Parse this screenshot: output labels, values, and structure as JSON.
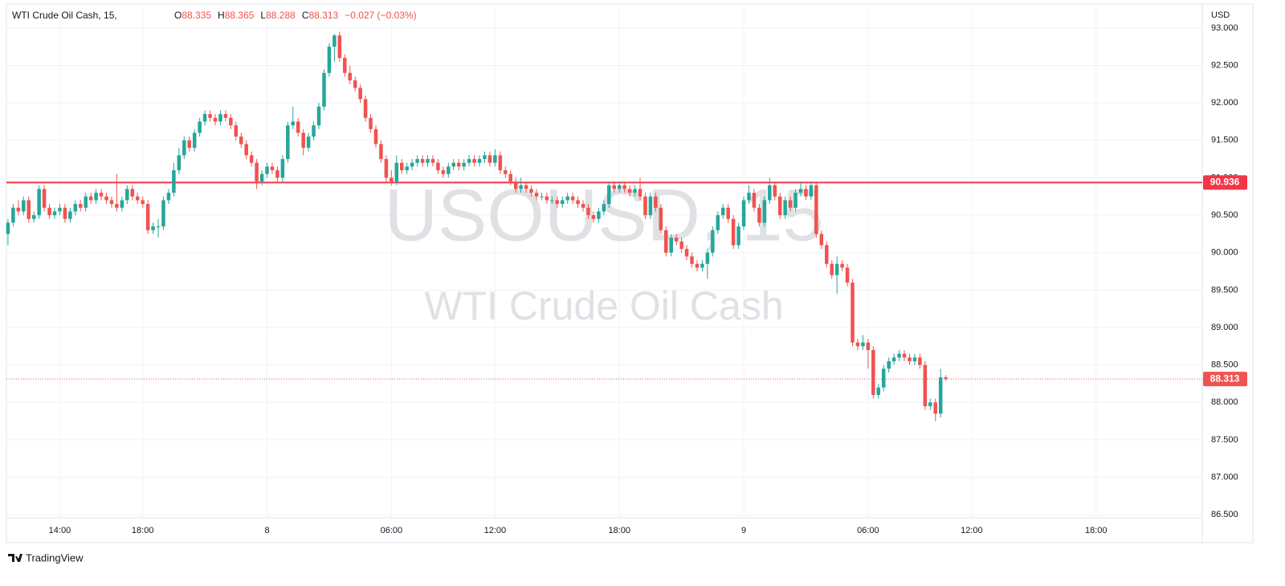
{
  "chart_data": {
    "type": "candlestick",
    "title": "WTI Crude Oil Cash, 15,",
    "ohlc_letters": [
      "O",
      "H",
      "L",
      "C"
    ],
    "change": "−0.027 (−0.03%)",
    "currency": "USD",
    "watermark": {
      "symbol": "USOUSD, 15",
      "name": "WTI Crude Oil Cash"
    },
    "brand": "TradingView",
    "up_color": "#26a69a",
    "down_color": "#ef5350",
    "grid": true,
    "hline": {
      "value": 90.936,
      "color": "#f23645"
    },
    "ylim": [
      86.46,
      93.32
    ],
    "yticks": [
      {
        "value": 86.5,
        "label": "86.500"
      },
      {
        "value": 87,
        "label": "87.000"
      },
      {
        "value": 87.5,
        "label": "87.500"
      },
      {
        "value": 88,
        "label": "88.000"
      },
      {
        "value": 88.5,
        "label": "88.500"
      },
      {
        "value": 89,
        "label": "89.000"
      },
      {
        "value": 89.5,
        "label": "89.500"
      },
      {
        "value": 90,
        "label": "90.000"
      },
      {
        "value": 90.5,
        "label": "90.500"
      },
      {
        "value": 91,
        "label": "91.000"
      },
      {
        "value": 91.5,
        "label": "91.500"
      },
      {
        "value": 92,
        "label": "92.000"
      },
      {
        "value": 92.5,
        "label": "92.500"
      },
      {
        "value": 93,
        "label": "93.000"
      }
    ],
    "xlim": [
      -0.3,
      230.5
    ],
    "xticks": [
      {
        "value": 10,
        "label": "14:00"
      },
      {
        "value": 26,
        "label": "18:00"
      },
      {
        "value": 50,
        "label": "8"
      },
      {
        "value": 74,
        "label": "06:00"
      },
      {
        "value": 94,
        "label": "12:00"
      },
      {
        "value": 118,
        "label": "18:00"
      },
      {
        "value": 142,
        "label": "9"
      },
      {
        "value": 166,
        "label": "06:00"
      },
      {
        "value": 186,
        "label": "12:00"
      },
      {
        "value": 210,
        "label": "18:00"
      }
    ],
    "candles": [
      [
        90.25,
        90.45,
        90.1,
        90.4
      ],
      [
        90.4,
        90.65,
        90.35,
        90.6
      ],
      [
        90.6,
        90.7,
        90.5,
        90.55
      ],
      [
        90.55,
        90.75,
        90.5,
        90.7
      ],
      [
        90.7,
        90.75,
        90.4,
        90.45
      ],
      [
        90.45,
        90.55,
        90.4,
        90.5
      ],
      [
        90.5,
        90.9,
        90.45,
        90.85
      ],
      [
        90.85,
        90.9,
        90.55,
        90.6
      ],
      [
        90.6,
        90.65,
        90.45,
        90.5
      ],
      [
        90.5,
        90.6,
        90.45,
        90.55
      ],
      [
        90.55,
        90.65,
        90.5,
        90.6
      ],
      [
        90.6,
        90.65,
        90.4,
        90.45
      ],
      [
        90.45,
        90.6,
        90.4,
        90.55
      ],
      [
        90.55,
        90.7,
        90.5,
        90.65
      ],
      [
        90.65,
        90.7,
        90.55,
        90.6
      ],
      [
        90.6,
        90.8,
        90.55,
        90.75
      ],
      [
        90.75,
        90.8,
        90.65,
        90.7
      ],
      [
        90.7,
        90.85,
        90.65,
        90.8
      ],
      [
        90.8,
        90.85,
        90.7,
        90.75
      ],
      [
        90.75,
        90.8,
        90.65,
        90.7
      ],
      [
        90.7,
        90.75,
        90.6,
        90.65
      ],
      [
        90.65,
        91.05,
        90.55,
        90.6
      ],
      [
        90.6,
        90.75,
        90.55,
        90.7
      ],
      [
        90.7,
        90.9,
        90.65,
        90.85
      ],
      [
        90.85,
        90.9,
        90.7,
        90.75
      ],
      [
        90.75,
        90.8,
        90.65,
        90.7
      ],
      [
        90.7,
        90.75,
        90.6,
        90.65
      ],
      [
        90.65,
        90.7,
        90.25,
        90.3
      ],
      [
        90.3,
        90.4,
        90.25,
        90.35
      ],
      [
        90.35,
        90.45,
        90.2,
        90.35
      ],
      [
        90.35,
        90.75,
        90.3,
        90.7
      ],
      [
        90.7,
        90.85,
        90.65,
        90.8
      ],
      [
        90.8,
        91.2,
        90.75,
        91.1
      ],
      [
        91.1,
        91.4,
        91.05,
        91.3
      ],
      [
        91.3,
        91.55,
        91.25,
        91.5
      ],
      [
        91.5,
        91.55,
        91.35,
        91.4
      ],
      [
        91.4,
        91.65,
        91.35,
        91.6
      ],
      [
        91.6,
        91.8,
        91.55,
        91.75
      ],
      [
        91.75,
        91.9,
        91.7,
        91.85
      ],
      [
        91.85,
        91.9,
        91.75,
        91.8
      ],
      [
        91.8,
        91.85,
        91.7,
        91.75
      ],
      [
        91.75,
        91.9,
        91.7,
        91.85
      ],
      [
        91.85,
        91.9,
        91.75,
        91.8
      ],
      [
        91.8,
        91.85,
        91.65,
        91.7
      ],
      [
        91.7,
        91.75,
        91.5,
        91.55
      ],
      [
        91.55,
        91.6,
        91.4,
        91.45
      ],
      [
        91.45,
        91.5,
        91.25,
        91.3
      ],
      [
        91.3,
        91.35,
        91.15,
        91.2
      ],
      [
        91.2,
        91.25,
        90.85,
        90.95
      ],
      [
        90.95,
        91.1,
        90.9,
        91.05
      ],
      [
        91.05,
        91.2,
        91.0,
        91.15
      ],
      [
        91.15,
        91.2,
        91.05,
        91.1
      ],
      [
        91.1,
        91.15,
        90.95,
        91.0
      ],
      [
        91.0,
        91.3,
        90.95,
        91.25
      ],
      [
        91.25,
        91.75,
        91.2,
        91.7
      ],
      [
        91.7,
        91.95,
        91.65,
        91.75
      ],
      [
        91.75,
        91.8,
        91.55,
        91.6
      ],
      [
        91.6,
        91.65,
        91.3,
        91.4
      ],
      [
        91.4,
        91.6,
        91.35,
        91.55
      ],
      [
        91.55,
        91.75,
        91.5,
        91.7
      ],
      [
        91.7,
        92.0,
        91.65,
        91.95
      ],
      [
        91.95,
        92.45,
        91.9,
        92.4
      ],
      [
        92.4,
        92.8,
        92.35,
        92.75
      ],
      [
        92.75,
        92.92,
        92.55,
        92.9
      ],
      [
        92.9,
        92.95,
        92.55,
        92.6
      ],
      [
        92.6,
        92.65,
        92.35,
        92.4
      ],
      [
        92.4,
        92.5,
        92.25,
        92.3
      ],
      [
        92.3,
        92.35,
        92.15,
        92.2
      ],
      [
        92.2,
        92.25,
        92.0,
        92.05
      ],
      [
        92.05,
        92.1,
        91.75,
        91.8
      ],
      [
        91.8,
        91.85,
        91.6,
        91.65
      ],
      [
        91.65,
        91.7,
        91.4,
        91.45
      ],
      [
        91.45,
        91.5,
        91.2,
        91.25
      ],
      [
        91.25,
        91.3,
        90.95,
        91.0
      ],
      [
        91.0,
        91.1,
        90.9,
        90.95
      ],
      [
        90.95,
        91.3,
        90.9,
        91.2
      ],
      [
        91.2,
        91.25,
        91.05,
        91.1
      ],
      [
        91.1,
        91.2,
        91.05,
        91.15
      ],
      [
        91.15,
        91.25,
        91.1,
        91.2
      ],
      [
        91.2,
        91.3,
        91.15,
        91.25
      ],
      [
        91.25,
        91.3,
        91.15,
        91.2
      ],
      [
        91.2,
        91.3,
        91.15,
        91.25
      ],
      [
        91.25,
        91.3,
        91.15,
        91.2
      ],
      [
        91.2,
        91.25,
        91.05,
        91.1
      ],
      [
        91.1,
        91.15,
        91.0,
        91.05
      ],
      [
        91.05,
        91.2,
        91.0,
        91.15
      ],
      [
        91.15,
        91.25,
        91.1,
        91.2
      ],
      [
        91.2,
        91.25,
        91.1,
        91.15
      ],
      [
        91.15,
        91.25,
        91.1,
        91.2
      ],
      [
        91.2,
        91.3,
        91.15,
        91.25
      ],
      [
        91.25,
        91.3,
        91.15,
        91.2
      ],
      [
        91.2,
        91.3,
        91.15,
        91.25
      ],
      [
        91.25,
        91.35,
        91.2,
        91.3
      ],
      [
        91.3,
        91.35,
        91.15,
        91.2
      ],
      [
        91.2,
        91.38,
        91.15,
        91.3
      ],
      [
        91.3,
        91.35,
        91.05,
        91.1
      ],
      [
        91.1,
        91.15,
        91.0,
        91.05
      ],
      [
        91.05,
        91.1,
        90.9,
        90.95
      ],
      [
        90.95,
        91.0,
        90.8,
        90.85
      ],
      [
        90.85,
        91.0,
        90.8,
        90.9
      ],
      [
        90.9,
        90.95,
        90.8,
        90.85
      ],
      [
        90.85,
        90.9,
        90.75,
        90.8
      ],
      [
        90.8,
        90.85,
        90.7,
        90.75
      ],
      [
        90.75,
        90.8,
        90.7,
        90.75
      ],
      [
        90.75,
        90.8,
        90.65,
        90.7
      ],
      [
        90.7,
        90.75,
        90.65,
        90.7
      ],
      [
        90.7,
        90.75,
        90.6,
        90.65
      ],
      [
        90.65,
        90.75,
        90.6,
        90.7
      ],
      [
        90.7,
        90.8,
        90.65,
        90.75
      ],
      [
        90.75,
        90.8,
        90.65,
        90.7
      ],
      [
        90.7,
        90.75,
        90.6,
        90.65
      ],
      [
        90.65,
        90.7,
        90.55,
        90.6
      ],
      [
        90.6,
        90.65,
        90.45,
        90.5
      ],
      [
        90.5,
        90.55,
        90.4,
        90.45
      ],
      [
        90.45,
        90.6,
        90.4,
        90.55
      ],
      [
        90.55,
        90.7,
        90.5,
        90.65
      ],
      [
        90.65,
        90.95,
        90.6,
        90.9
      ],
      [
        90.9,
        90.95,
        90.8,
        90.85
      ],
      [
        90.85,
        90.95,
        90.8,
        90.9
      ],
      [
        90.9,
        90.95,
        90.8,
        90.85
      ],
      [
        90.85,
        90.9,
        90.75,
        90.8
      ],
      [
        90.8,
        90.9,
        90.75,
        90.85
      ],
      [
        90.85,
        91.0,
        90.7,
        90.75
      ],
      [
        90.75,
        90.8,
        90.45,
        90.5
      ],
      [
        90.5,
        90.8,
        90.45,
        90.75
      ],
      [
        90.75,
        90.8,
        90.55,
        90.6
      ],
      [
        90.6,
        90.65,
        90.25,
        90.3
      ],
      [
        90.3,
        90.35,
        89.95,
        90.0
      ],
      [
        90.0,
        90.25,
        89.95,
        90.2
      ],
      [
        90.2,
        90.25,
        90.1,
        90.15
      ],
      [
        90.15,
        90.2,
        90.0,
        90.05
      ],
      [
        90.05,
        90.1,
        89.9,
        89.95
      ],
      [
        89.95,
        90.0,
        89.8,
        89.85
      ],
      [
        89.85,
        89.9,
        89.75,
        89.8
      ],
      [
        89.8,
        89.9,
        89.75,
        89.85
      ],
      [
        89.85,
        90.05,
        89.65,
        90.0
      ],
      [
        90.0,
        90.35,
        89.95,
        90.3
      ],
      [
        90.3,
        90.55,
        90.25,
        90.5
      ],
      [
        90.5,
        90.65,
        90.45,
        90.6
      ],
      [
        90.6,
        90.65,
        90.4,
        90.45
      ],
      [
        90.45,
        90.5,
        90.05,
        90.1
      ],
      [
        90.1,
        90.4,
        90.05,
        90.35
      ],
      [
        90.35,
        90.75,
        90.3,
        90.7
      ],
      [
        90.7,
        90.9,
        90.65,
        90.8
      ],
      [
        90.8,
        90.85,
        90.55,
        90.6
      ],
      [
        90.6,
        90.65,
        90.35,
        90.4
      ],
      [
        90.4,
        90.75,
        90.35,
        90.7
      ],
      [
        90.7,
        91.0,
        90.65,
        90.9
      ],
      [
        90.9,
        90.95,
        90.7,
        90.75
      ],
      [
        90.75,
        90.8,
        90.45,
        90.5
      ],
      [
        90.5,
        90.75,
        90.45,
        90.7
      ],
      [
        90.7,
        90.75,
        90.55,
        90.6
      ],
      [
        90.6,
        90.85,
        90.55,
        90.8
      ],
      [
        90.8,
        90.95,
        90.75,
        90.85
      ],
      [
        90.85,
        90.9,
        90.7,
        90.75
      ],
      [
        90.75,
        90.95,
        90.7,
        90.9
      ],
      [
        90.9,
        90.95,
        90.2,
        90.25
      ],
      [
        90.25,
        90.3,
        90.05,
        90.1
      ],
      [
        90.1,
        90.15,
        89.8,
        89.85
      ],
      [
        89.85,
        89.9,
        89.65,
        89.7
      ],
      [
        89.7,
        89.95,
        89.45,
        89.85
      ],
      [
        89.85,
        89.9,
        89.75,
        89.8
      ],
      [
        89.8,
        89.85,
        89.55,
        89.6
      ],
      [
        89.6,
        89.65,
        88.75,
        88.8
      ],
      [
        88.8,
        88.85,
        88.7,
        88.75
      ],
      [
        88.75,
        88.9,
        88.7,
        88.8
      ],
      [
        88.8,
        88.85,
        88.45,
        88.7
      ],
      [
        88.7,
        88.75,
        88.05,
        88.1
      ],
      [
        88.1,
        88.25,
        88.05,
        88.2
      ],
      [
        88.2,
        88.5,
        88.15,
        88.45
      ],
      [
        88.45,
        88.6,
        88.4,
        88.55
      ],
      [
        88.55,
        88.65,
        88.5,
        88.6
      ],
      [
        88.6,
        88.7,
        88.55,
        88.65
      ],
      [
        88.65,
        88.7,
        88.55,
        88.6
      ],
      [
        88.6,
        88.65,
        88.5,
        88.55
      ],
      [
        88.55,
        88.65,
        88.5,
        88.6
      ],
      [
        88.6,
        88.65,
        88.45,
        88.5
      ],
      [
        88.5,
        88.55,
        87.9,
        87.95
      ],
      [
        87.95,
        88.05,
        87.9,
        88.0
      ],
      [
        88.0,
        88.05,
        87.75,
        87.85
      ],
      [
        87.85,
        88.45,
        87.8,
        88.335
      ],
      [
        88.335,
        88.365,
        88.288,
        88.313
      ]
    ]
  }
}
